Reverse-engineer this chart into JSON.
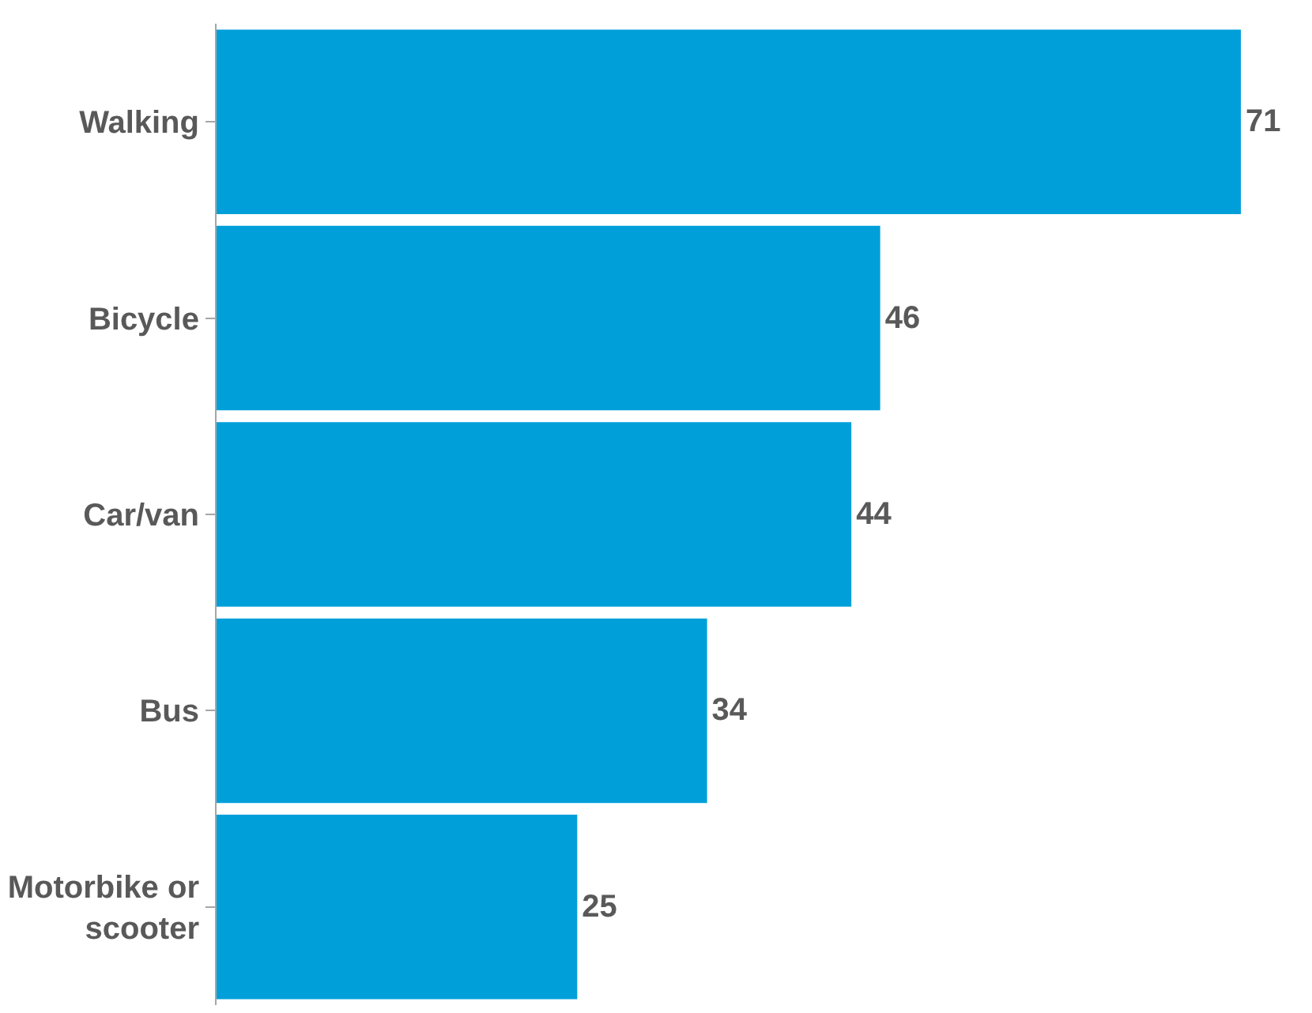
{
  "chart_data": {
    "type": "bar",
    "orientation": "horizontal",
    "categories": [
      "Walking",
      "Bicycle",
      "Car/van",
      "Bus",
      "Motorbike or\nscooter"
    ],
    "values": [
      71,
      46,
      44,
      34,
      25
    ],
    "color": "#009fda",
    "data_labels": true
  }
}
